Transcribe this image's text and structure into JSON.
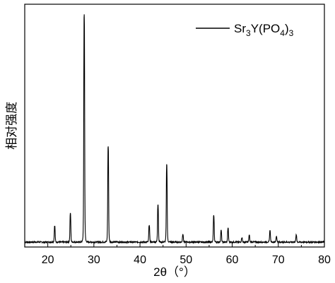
{
  "chart_data": {
    "type": "line",
    "xlabel": "2θ（°）",
    "ylabel": "相对强度",
    "xlim": [
      15,
      80
    ],
    "x_ticks": [
      "20",
      "30",
      "40",
      "50",
      "60",
      "70",
      "80"
    ],
    "y_ticks": [],
    "grid": false,
    "legend_position": "top-right",
    "series": [
      {
        "name": "Sr3Y(PO4)3",
        "name_parts": {
          "base1": "Sr",
          "sub1": "3",
          "mid": "Y(PO",
          "sub2": "4",
          "end": ")",
          "sub3": "3"
        },
        "peaks": [
          {
            "x": 21.5,
            "y": 0.07
          },
          {
            "x": 24.9,
            "y": 0.125
          },
          {
            "x": 27.9,
            "y": 1.0
          },
          {
            "x": 33.1,
            "y": 0.42
          },
          {
            "x": 42.0,
            "y": 0.075
          },
          {
            "x": 43.9,
            "y": 0.165
          },
          {
            "x": 45.8,
            "y": 0.34
          },
          {
            "x": 49.3,
            "y": 0.035
          },
          {
            "x": 56.0,
            "y": 0.115
          },
          {
            "x": 57.6,
            "y": 0.05
          },
          {
            "x": 59.1,
            "y": 0.06
          },
          {
            "x": 62.1,
            "y": 0.02
          },
          {
            "x": 63.7,
            "y": 0.03
          },
          {
            "x": 68.2,
            "y": 0.05
          },
          {
            "x": 69.6,
            "y": 0.025
          },
          {
            "x": 73.9,
            "y": 0.03
          }
        ]
      }
    ]
  }
}
